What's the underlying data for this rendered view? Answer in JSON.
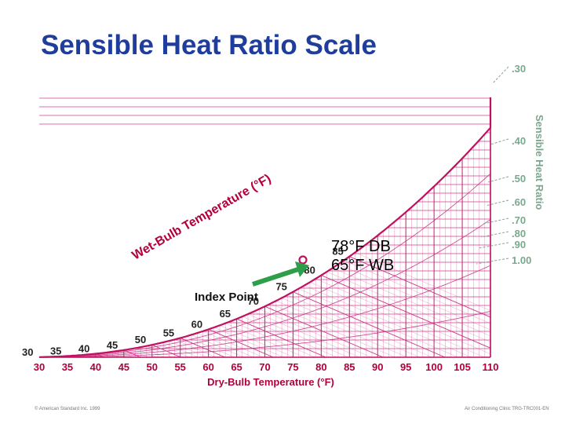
{
  "title": "Sensible Heat Ratio Scale",
  "colors": {
    "grid": "#c8237a",
    "curve": "#c01060",
    "label": "#b3003c",
    "title": "#1f3d9c",
    "arrow": "#2e9e4a",
    "shr_text": "#7aa88e",
    "shr_lines": "#8aa0a0"
  },
  "dry_bulb_axis": {
    "label": "Dry-Bulb Temperature (°F)",
    "ticks": [
      "30",
      "35",
      "40",
      "45",
      "50",
      "55",
      "60",
      "65",
      "70",
      "75",
      "80",
      "85",
      "90",
      "95",
      "100",
      "105",
      "110"
    ]
  },
  "wet_bulb": {
    "label": "Wet-Bulb Temperature (°F)",
    "values": [
      "30",
      "35",
      "40",
      "45",
      "50",
      "55",
      "60",
      "65",
      "70",
      "75",
      "80",
      "85"
    ]
  },
  "shr_scale": {
    "label": "Sensible Heat Ratio",
    "values": [
      ".30",
      ".40",
      ".50",
      ".60",
      ".70",
      ".80",
      ".90",
      "1.00"
    ]
  },
  "state_point": {
    "db_text": "78°F DB",
    "wb_text": "65°F WB",
    "db": 78,
    "wb": 65
  },
  "index_point_label": "Index Point",
  "footer": {
    "left": "© American Standard Inc. 1999",
    "right": "Air Conditioning Clinic TRG-TRC001-EN"
  }
}
